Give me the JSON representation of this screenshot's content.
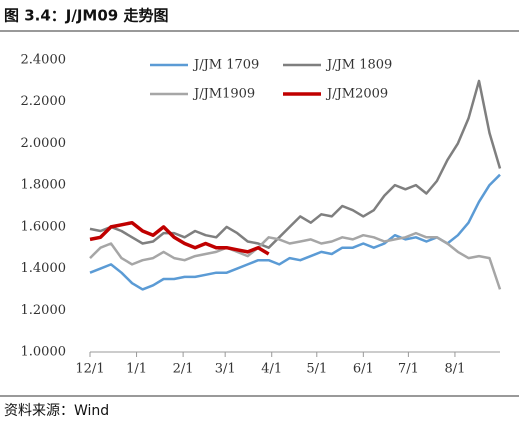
{
  "header": {
    "title": "图 3.4：J/JM09 走势图"
  },
  "chart_data": {
    "type": "line",
    "x": [
      0,
      7,
      14,
      21,
      28,
      35,
      42,
      49,
      56,
      63,
      70,
      77,
      84,
      91,
      98,
      105,
      112,
      119,
      126,
      133,
      140,
      147,
      154,
      161,
      168,
      175,
      182,
      189,
      196,
      203,
      210,
      217,
      224,
      231,
      238,
      245,
      252,
      259,
      266,
      273
    ],
    "xlim": [
      0,
      273
    ],
    "xticks": [
      {
        "value": 0,
        "label": "12/1"
      },
      {
        "value": 31,
        "label": "1/1"
      },
      {
        "value": 62,
        "label": "2/1"
      },
      {
        "value": 90,
        "label": "3/1"
      },
      {
        "value": 121,
        "label": "4/1"
      },
      {
        "value": 151,
        "label": "5/1"
      },
      {
        "value": 182,
        "label": "6/1"
      },
      {
        "value": 212,
        "label": "7/1"
      },
      {
        "value": 243,
        "label": "8/1"
      }
    ],
    "ylim": [
      1.0,
      2.4
    ],
    "yticks": [
      {
        "value": 1.0,
        "label": "1.0000"
      },
      {
        "value": 1.2,
        "label": "1.2000"
      },
      {
        "value": 1.4,
        "label": "1.4000"
      },
      {
        "value": 1.6,
        "label": "1.6000"
      },
      {
        "value": 1.8,
        "label": "1.8000"
      },
      {
        "value": 2.0,
        "label": "2.0000"
      },
      {
        "value": 2.2,
        "label": "2.2000"
      },
      {
        "value": 2.4,
        "label": "2.4000"
      }
    ],
    "series": [
      {
        "name": "J/JM 1709",
        "color": "#5b9bd5",
        "width": 2.5,
        "values": [
          1.38,
          1.4,
          1.42,
          1.38,
          1.33,
          1.3,
          1.32,
          1.35,
          1.35,
          1.36,
          1.36,
          1.37,
          1.38,
          1.38,
          1.4,
          1.42,
          1.44,
          1.44,
          1.42,
          1.45,
          1.44,
          1.46,
          1.48,
          1.47,
          1.5,
          1.5,
          1.52,
          1.5,
          1.52,
          1.56,
          1.54,
          1.55,
          1.53,
          1.55,
          1.52,
          1.56,
          1.62,
          1.72,
          1.8,
          1.85
        ]
      },
      {
        "name": "J/JM 1809",
        "color": "#7f7f7f",
        "width": 2.5,
        "values": [
          1.59,
          1.58,
          1.6,
          1.58,
          1.55,
          1.52,
          1.53,
          1.57,
          1.57,
          1.55,
          1.58,
          1.56,
          1.55,
          1.6,
          1.57,
          1.53,
          1.52,
          1.5,
          1.55,
          1.6,
          1.65,
          1.62,
          1.66,
          1.65,
          1.7,
          1.68,
          1.65,
          1.68,
          1.75,
          1.8,
          1.78,
          1.8,
          1.76,
          1.82,
          1.92,
          2.0,
          2.12,
          2.3,
          2.05,
          1.88
        ]
      },
      {
        "name": "J/JM1909",
        "color": "#a6a6a6",
        "width": 2.5,
        "values": [
          1.45,
          1.5,
          1.52,
          1.45,
          1.42,
          1.44,
          1.45,
          1.48,
          1.45,
          1.44,
          1.46,
          1.47,
          1.48,
          1.5,
          1.48,
          1.46,
          1.5,
          1.55,
          1.54,
          1.52,
          1.53,
          1.54,
          1.52,
          1.53,
          1.55,
          1.54,
          1.56,
          1.55,
          1.53,
          1.54,
          1.55,
          1.57,
          1.55,
          1.55,
          1.52,
          1.48,
          1.45,
          1.46,
          1.45,
          1.3
        ]
      },
      {
        "name": "J/JM2009",
        "color": "#c00000",
        "width": 3.5,
        "values": [
          1.54,
          1.55,
          1.6,
          1.61,
          1.62,
          1.58,
          1.56,
          1.6,
          1.55,
          1.52,
          1.5,
          1.52,
          1.5,
          1.5,
          1.49,
          1.48,
          1.5,
          1.47,
          null,
          null,
          null,
          null,
          null,
          null,
          null,
          null,
          null,
          null,
          null,
          null,
          null,
          null,
          null,
          null,
          null,
          null,
          null,
          null,
          null,
          null
        ]
      }
    ]
  },
  "footer": {
    "source": "资料来源：Wind"
  }
}
